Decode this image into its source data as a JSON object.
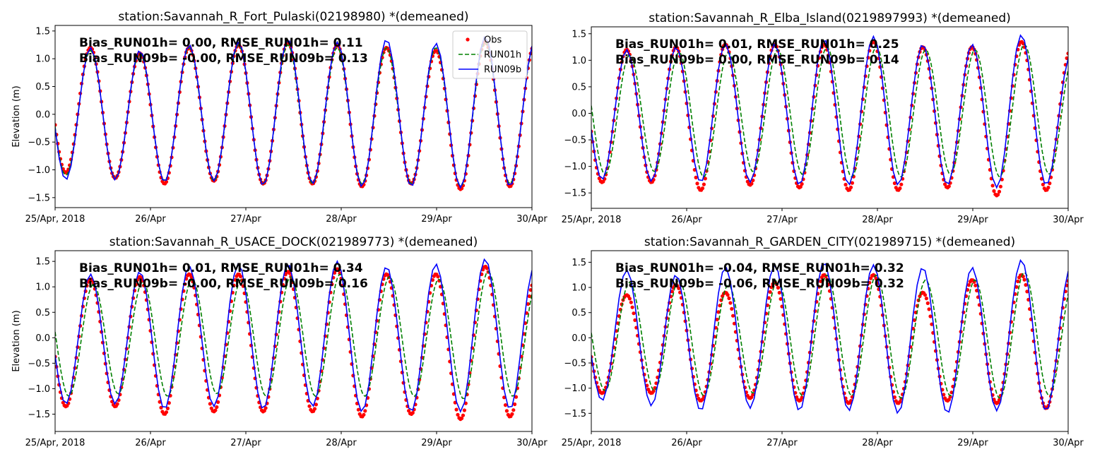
{
  "chart_data": [
    {
      "type": "line",
      "title": "station:Savannah_R_Fort_Pulaski(02198980) *(demeaned)",
      "ylabel": "Elevation (m)",
      "xlim": [
        "2018-04-25 00:00",
        "2018-04-30 00:00"
      ],
      "ylim": [
        -1.68,
        1.6
      ],
      "yticks": [
        -1.5,
        -1.0,
        -0.5,
        0.0,
        0.5,
        1.0,
        1.5
      ],
      "ytick_labels": [
        "−1.5",
        "−1.0",
        "−0.5",
        "0.0",
        "0.5",
        "1.0",
        "1.5"
      ],
      "xtick_labels": [
        "25/Apr, 2018",
        "26/Apr",
        "27/Apr",
        "28/Apr",
        "29/Apr",
        "30/Apr"
      ],
      "annotations": [
        "Bias_RUN01h=  0.00, RMSE_RUN01h=  0.11",
        "Bias_RUN09b= -0.00, RMSE_RUN09b=  0.13"
      ],
      "legend": {
        "placement": "upper-right",
        "entries": [
          "Obs",
          "RUN01h",
          "RUN09b"
        ]
      },
      "extreme_times": [
        "2018-04-24 20:30",
        "2018-04-25 02:42",
        "2018-04-25 08:54",
        "2018-04-25 15:07",
        "2018-04-25 21:19",
        "2018-04-26 03:32",
        "2018-04-26 09:44",
        "2018-04-26 15:57",
        "2018-04-26 22:09",
        "2018-04-27 04:22",
        "2018-04-27 10:34",
        "2018-04-27 16:47",
        "2018-04-27 22:59",
        "2018-04-28 05:12",
        "2018-04-28 11:24",
        "2018-04-28 17:37",
        "2018-04-28 23:49",
        "2018-04-29 06:02",
        "2018-04-29 12:14",
        "2018-04-29 18:27",
        "2018-04-30 00:39"
      ],
      "series": [
        {
          "name": "Obs",
          "style": "dots",
          "color": "#ff0000",
          "extreme_values": [
            1.1,
            -1.05,
            1.2,
            -1.15,
            1.1,
            -1.25,
            1.2,
            -1.2,
            1.25,
            -1.25,
            1.3,
            -1.25,
            1.25,
            -1.3,
            1.2,
            -1.25,
            1.15,
            -1.35,
            1.3,
            -1.3,
            1.25
          ]
        },
        {
          "name": "RUN01h",
          "style": "dashed",
          "color": "#008000",
          "extreme_values": [
            1.1,
            -1.1,
            1.15,
            -1.15,
            1.1,
            -1.2,
            1.2,
            -1.2,
            1.25,
            -1.25,
            1.25,
            -1.25,
            1.2,
            -1.25,
            1.2,
            -1.25,
            1.2,
            -1.3,
            1.3,
            -1.25,
            1.25
          ]
        },
        {
          "name": "RUN09b",
          "style": "solid",
          "color": "#0000ff",
          "extreme_values": [
            1.15,
            -1.18,
            1.2,
            -1.18,
            1.15,
            -1.22,
            1.25,
            -1.2,
            1.3,
            -1.28,
            1.35,
            -1.25,
            1.3,
            -1.3,
            1.35,
            -1.3,
            1.28,
            -1.32,
            1.4,
            -1.3,
            1.3
          ]
        }
      ]
    },
    {
      "type": "line",
      "title": "station:Savannah_R_Elba_Island(0219897993) *(demeaned)",
      "ylabel": "",
      "xlim": [
        "2018-04-25 00:00",
        "2018-04-30 00:00"
      ],
      "ylim": [
        -1.79,
        1.63
      ],
      "yticks": [
        -1.5,
        -1.0,
        -0.5,
        0.0,
        0.5,
        1.0,
        1.5
      ],
      "ytick_labels": [
        "−1.5",
        "−1.0",
        "−0.5",
        "0.0",
        "0.5",
        "1.0",
        "1.5"
      ],
      "xtick_labels": [
        "25/Apr, 2018",
        "26/Apr",
        "27/Apr",
        "28/Apr",
        "29/Apr",
        "30/Apr"
      ],
      "annotations": [
        "Bias_RUN01h=  0.01, RMSE_RUN01h=  0.25",
        "Bias_RUN09b=  0.00, RMSE_RUN09b=  0.14"
      ],
      "extreme_times": [
        "2018-04-24 20:30",
        "2018-04-25 02:42",
        "2018-04-25 08:54",
        "2018-04-25 15:07",
        "2018-04-25 21:19",
        "2018-04-26 03:32",
        "2018-04-26 09:44",
        "2018-04-26 15:57",
        "2018-04-26 22:09",
        "2018-04-27 04:22",
        "2018-04-27 10:34",
        "2018-04-27 16:47",
        "2018-04-27 22:59",
        "2018-04-28 05:12",
        "2018-04-28 11:24",
        "2018-04-28 17:37",
        "2018-04-28 23:49",
        "2018-04-29 06:02",
        "2018-04-29 12:14",
        "2018-04-29 18:27",
        "2018-04-30 00:39"
      ],
      "series": [
        {
          "name": "Obs",
          "style": "dots",
          "color": "#ff0000",
          "extreme_values": [
            1.1,
            -1.3,
            1.2,
            -1.3,
            1.25,
            -1.45,
            1.3,
            -1.35,
            1.3,
            -1.4,
            1.3,
            -1.45,
            1.35,
            -1.45,
            1.25,
            -1.4,
            1.25,
            -1.55,
            1.35,
            -1.45,
            1.2
          ]
        },
        {
          "name": "RUN01h",
          "style": "dashed",
          "color": "#008000",
          "extreme_times": [
            "2018-04-24 21:15",
            "2018-04-25 03:27",
            "2018-04-25 09:39",
            "2018-04-25 15:52",
            "2018-04-25 22:04",
            "2018-04-26 04:17",
            "2018-04-26 10:29",
            "2018-04-26 16:42",
            "2018-04-26 22:54",
            "2018-04-27 05:07",
            "2018-04-27 11:19",
            "2018-04-27 17:32",
            "2018-04-27 23:44",
            "2018-04-28 05:57",
            "2018-04-28 12:09",
            "2018-04-28 18:22",
            "2018-04-29 00:34",
            "2018-04-29 06:47",
            "2018-04-29 12:59",
            "2018-04-29 19:12",
            "2018-04-30 01:24"
          ],
          "extreme_values": [
            1.05,
            -1.15,
            1.1,
            -1.1,
            1.15,
            -1.2,
            1.15,
            -1.1,
            1.2,
            -1.15,
            1.25,
            -1.2,
            1.25,
            -1.2,
            1.2,
            -1.15,
            1.2,
            -1.2,
            1.3,
            -1.15,
            1.1
          ]
        },
        {
          "name": "RUN09b",
          "style": "solid",
          "color": "#0000ff",
          "extreme_values": [
            1.1,
            -1.25,
            1.2,
            -1.28,
            1.25,
            -1.3,
            1.3,
            -1.3,
            1.3,
            -1.35,
            1.4,
            -1.35,
            1.45,
            -1.35,
            1.3,
            -1.35,
            1.3,
            -1.4,
            1.48,
            -1.35,
            1.1
          ]
        }
      ]
    },
    {
      "type": "line",
      "title": "station:Savannah_R_USACE_DOCK(021989773) *(demeaned)",
      "ylabel": "Elevation (m)",
      "xlim": [
        "2018-04-25 00:00",
        "2018-04-30 00:00"
      ],
      "ylim": [
        -1.84,
        1.71
      ],
      "yticks": [
        -1.5,
        -1.0,
        -0.5,
        0.0,
        0.5,
        1.0,
        1.5
      ],
      "ytick_labels": [
        "−1.5",
        "−1.0",
        "−0.5",
        "0.0",
        "0.5",
        "1.0",
        "1.5"
      ],
      "xtick_labels": [
        "25/Apr, 2018",
        "26/Apr",
        "27/Apr",
        "28/Apr",
        "29/Apr",
        "30/Apr"
      ],
      "annotations": [
        "Bias_RUN01h=  0.01, RMSE_RUN01h=  0.34",
        "Bias_RUN09b= -0.00, RMSE_RUN09b=  0.16"
      ],
      "extreme_times": [
        "2018-04-24 20:30",
        "2018-04-25 02:42",
        "2018-04-25 08:54",
        "2018-04-25 15:07",
        "2018-04-25 21:19",
        "2018-04-26 03:32",
        "2018-04-26 09:44",
        "2018-04-26 15:57",
        "2018-04-26 22:09",
        "2018-04-27 04:22",
        "2018-04-27 10:34",
        "2018-04-27 16:47",
        "2018-04-27 22:59",
        "2018-04-28 05:12",
        "2018-04-28 11:24",
        "2018-04-28 17:37",
        "2018-04-28 23:49",
        "2018-04-29 06:02",
        "2018-04-29 12:14",
        "2018-04-29 18:27",
        "2018-04-30 00:39"
      ],
      "series": [
        {
          "name": "Obs",
          "style": "dots",
          "color": "#ff0000",
          "extreme_values": [
            1.1,
            -1.35,
            1.15,
            -1.35,
            1.2,
            -1.5,
            1.25,
            -1.45,
            1.25,
            -1.45,
            1.3,
            -1.45,
            1.35,
            -1.55,
            1.25,
            -1.5,
            1.25,
            -1.6,
            1.4,
            -1.55,
            1.1
          ]
        },
        {
          "name": "RUN01h",
          "style": "dashed",
          "color": "#008000",
          "extreme_times": [
            "2018-04-24 21:15",
            "2018-04-25 03:27",
            "2018-04-25 09:39",
            "2018-04-25 15:52",
            "2018-04-25 22:04",
            "2018-04-26 04:17",
            "2018-04-26 10:29",
            "2018-04-26 16:42",
            "2018-04-26 22:54",
            "2018-04-27 05:07",
            "2018-04-27 11:19",
            "2018-04-27 17:32",
            "2018-04-27 23:44",
            "2018-04-28 05:57",
            "2018-04-28 12:09",
            "2018-04-28 18:22",
            "2018-04-29 00:34",
            "2018-04-29 06:47",
            "2018-04-29 12:59",
            "2018-04-29 19:12",
            "2018-04-30 01:24"
          ],
          "extreme_values": [
            1.0,
            -1.15,
            1.05,
            -1.1,
            1.1,
            -1.15,
            1.15,
            -1.1,
            1.15,
            -1.15,
            1.2,
            -1.15,
            1.25,
            -1.15,
            1.2,
            -1.15,
            1.15,
            -1.2,
            1.3,
            -1.15,
            1.15
          ]
        },
        {
          "name": "RUN09b",
          "style": "solid",
          "color": "#0000ff",
          "extreme_values": [
            1.1,
            -1.3,
            1.25,
            -1.3,
            1.3,
            -1.4,
            1.4,
            -1.35,
            1.45,
            -1.4,
            1.45,
            -1.35,
            1.5,
            -1.45,
            1.4,
            -1.45,
            1.45,
            -1.45,
            1.55,
            -1.4,
            1.4
          ]
        }
      ]
    },
    {
      "type": "line",
      "title": "station:Savannah_R_GARDEN_CITY(021989715) *(demeaned)",
      "ylabel": "",
      "xlim": [
        "2018-04-25 00:00",
        "2018-04-30 00:00"
      ],
      "ylim": [
        -1.86,
        1.73
      ],
      "yticks": [
        -1.5,
        -1.0,
        -0.5,
        0.0,
        0.5,
        1.0,
        1.5
      ],
      "ytick_labels": [
        "−1.5",
        "−1.0",
        "−0.5",
        "0.0",
        "0.5",
        "1.0",
        "1.5"
      ],
      "xtick_labels": [
        "25/Apr, 2018",
        "26/Apr",
        "27/Apr",
        "28/Apr",
        "29/Apr",
        "30/Apr"
      ],
      "annotations": [
        "Bias_RUN01h= -0.04, RMSE_RUN01h=  0.32",
        "Bias_RUN09b= -0.06, RMSE_RUN09b=  0.32"
      ],
      "extreme_times": [
        "2018-04-24 20:30",
        "2018-04-25 02:42",
        "2018-04-25 08:54",
        "2018-04-25 15:07",
        "2018-04-25 21:19",
        "2018-04-26 03:32",
        "2018-04-26 09:44",
        "2018-04-26 15:57",
        "2018-04-26 22:09",
        "2018-04-27 04:22",
        "2018-04-27 10:34",
        "2018-04-27 16:47",
        "2018-04-27 22:59",
        "2018-04-28 05:12",
        "2018-04-28 11:24",
        "2018-04-28 17:37",
        "2018-04-28 23:49",
        "2018-04-29 06:02",
        "2018-04-29 12:14",
        "2018-04-29 18:27",
        "2018-04-30 00:39"
      ],
      "series": [
        {
          "name": "Obs",
          "style": "dots",
          "color": "#ff0000",
          "extreme_values": [
            0.7,
            -1.1,
            0.85,
            -1.1,
            1.05,
            -1.25,
            0.9,
            -1.2,
            1.1,
            -1.25,
            1.25,
            -1.3,
            1.25,
            -1.3,
            0.9,
            -1.25,
            1.15,
            -1.3,
            1.25,
            -1.4,
            1.2
          ]
        },
        {
          "name": "RUN01h",
          "style": "dashed",
          "color": "#008000",
          "extreme_times": [
            "2018-04-24 21:15",
            "2018-04-25 03:27",
            "2018-04-25 09:39",
            "2018-04-25 15:52",
            "2018-04-25 22:04",
            "2018-04-26 04:17",
            "2018-04-26 10:29",
            "2018-04-26 16:42",
            "2018-04-26 22:54",
            "2018-04-27 05:07",
            "2018-04-27 11:19",
            "2018-04-27 17:32",
            "2018-04-27 23:44",
            "2018-04-28 05:57",
            "2018-04-28 12:09",
            "2018-04-28 18:22",
            "2018-04-29 00:34",
            "2018-04-29 06:47",
            "2018-04-29 12:59",
            "2018-04-29 19:12",
            "2018-04-30 01:24"
          ],
          "extreme_values": [
            0.9,
            -1.05,
            1.1,
            -1.05,
            1.15,
            -1.15,
            1.05,
            -1.1,
            1.15,
            -1.15,
            1.25,
            -1.15,
            1.25,
            -1.2,
            1.15,
            -1.15,
            1.15,
            -1.2,
            1.3,
            -1.15,
            1.15
          ]
        },
        {
          "name": "RUN09b",
          "style": "solid",
          "color": "#0000ff",
          "extreme_values": [
            1.0,
            -1.25,
            1.35,
            -1.35,
            1.25,
            -1.45,
            1.4,
            -1.4,
            1.45,
            -1.45,
            1.5,
            -1.45,
            1.45,
            -1.5,
            1.4,
            -1.5,
            1.4,
            -1.45,
            1.55,
            -1.45,
            1.4
          ]
        }
      ]
    }
  ]
}
